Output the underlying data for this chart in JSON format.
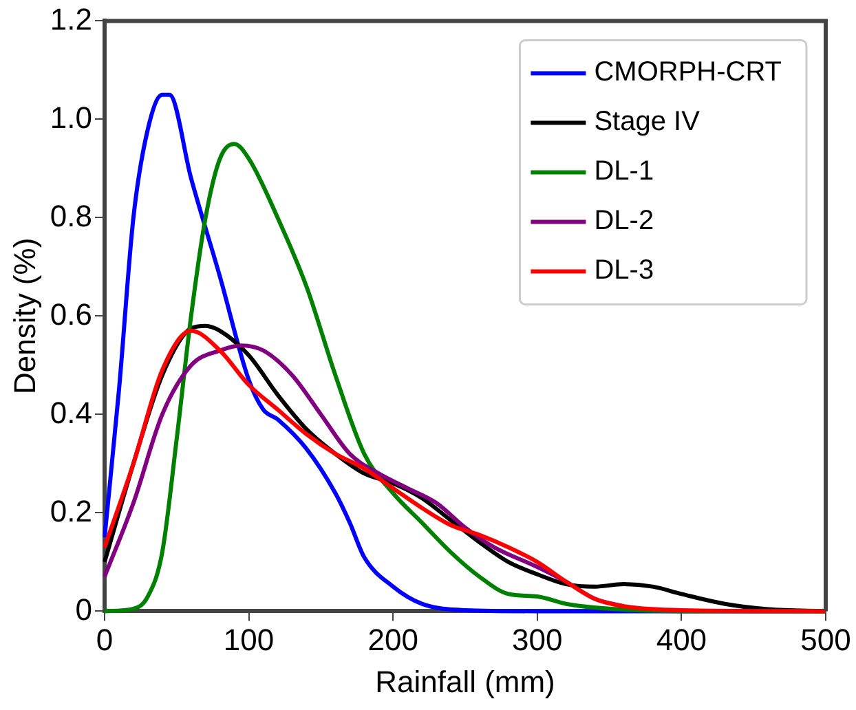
{
  "chart_data": {
    "type": "line",
    "xlabel": "Rainfall (mm)",
    "ylabel": "Density (%)",
    "xlim": [
      0,
      500
    ],
    "xticks": [
      0,
      100,
      200,
      300,
      400,
      500
    ],
    "ylim": [
      0,
      1.2
    ],
    "yticks": [
      {
        "value": 0,
        "label": "0"
      },
      {
        "value": 0.2,
        "label": "0.2"
      },
      {
        "value": 0.4,
        "label": "0.4"
      },
      {
        "value": 0.6,
        "label": "0.6"
      },
      {
        "value": 0.8,
        "label": "0.8"
      },
      {
        "value": 1,
        "label": "1.0"
      },
      {
        "value": 1.2,
        "label": "1.2"
      }
    ],
    "grid": false,
    "legend": "top right",
    "marker": "none",
    "line_style": "solid",
    "series": [
      {
        "name": "CMORPH-CRT",
        "color": "#0000ff",
        "x": [
          0,
          10,
          20,
          30,
          40,
          45,
          60,
          80,
          100,
          110,
          120,
          140,
          160,
          170,
          180,
          200,
          220,
          250,
          300,
          500
        ],
        "values": [
          0.15,
          0.45,
          0.8,
          0.98,
          1.05,
          1.05,
          0.88,
          0.68,
          0.47,
          0.41,
          0.39,
          0.33,
          0.24,
          0.18,
          0.11,
          0.05,
          0.015,
          0.002,
          0,
          0
        ]
      },
      {
        "name": "Stage IV",
        "color": "#000000",
        "x": [
          0,
          20,
          40,
          60,
          70,
          80,
          100,
          120,
          140,
          160,
          180,
          200,
          220,
          240,
          260,
          280,
          300,
          320,
          340,
          360,
          380,
          400,
          430,
          460,
          500
        ],
        "values": [
          0.1,
          0.3,
          0.48,
          0.575,
          0.58,
          0.57,
          0.52,
          0.44,
          0.37,
          0.32,
          0.28,
          0.26,
          0.23,
          0.185,
          0.14,
          0.1,
          0.075,
          0.055,
          0.05,
          0.055,
          0.05,
          0.035,
          0.015,
          0.004,
          0
        ]
      },
      {
        "name": "DL-1",
        "color": "#008000",
        "x": [
          0,
          20,
          30,
          40,
          50,
          60,
          70,
          80,
          90,
          100,
          120,
          140,
          160,
          180,
          200,
          220,
          240,
          260,
          280,
          300,
          320,
          350,
          400,
          500
        ],
        "values": [
          0,
          0.005,
          0.03,
          0.12,
          0.35,
          0.6,
          0.8,
          0.92,
          0.95,
          0.92,
          0.8,
          0.66,
          0.48,
          0.32,
          0.24,
          0.18,
          0.12,
          0.07,
          0.035,
          0.03,
          0.015,
          0.005,
          0,
          0
        ]
      },
      {
        "name": "DL-2",
        "color": "#800080",
        "x": [
          0,
          20,
          40,
          60,
          80,
          95,
          110,
          130,
          150,
          170,
          190,
          210,
          230,
          250,
          270,
          300,
          320,
          340,
          360
        ],
        "values": [
          0.07,
          0.22,
          0.4,
          0.5,
          0.53,
          0.54,
          0.53,
          0.48,
          0.4,
          0.32,
          0.28,
          0.25,
          0.22,
          0.17,
          0.13,
          0.09,
          0.06,
          0.025,
          0.01
        ]
      },
      {
        "name": "DL-3",
        "color": "#ff0000",
        "x": [
          0,
          20,
          40,
          60,
          80,
          100,
          120,
          140,
          160,
          180,
          200,
          220,
          240,
          260,
          280,
          300,
          320,
          340,
          360,
          400,
          500
        ],
        "values": [
          0.13,
          0.3,
          0.49,
          0.57,
          0.53,
          0.46,
          0.41,
          0.36,
          0.32,
          0.29,
          0.25,
          0.21,
          0.175,
          0.155,
          0.13,
          0.1,
          0.06,
          0.025,
          0.01,
          0.002,
          0
        ]
      }
    ]
  }
}
